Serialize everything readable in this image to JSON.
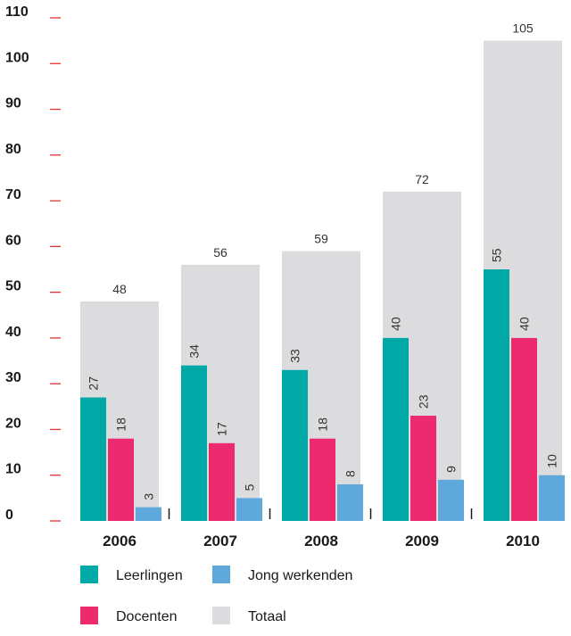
{
  "chart_data": {
    "type": "bar",
    "categories": [
      "2006",
      "2007",
      "2008",
      "2009",
      "2010"
    ],
    "series": [
      {
        "name": "Leerlingen",
        "values": [
          27,
          34,
          33,
          40,
          55
        ],
        "color": "#00a9a5"
      },
      {
        "name": "Docenten",
        "values": [
          18,
          17,
          18,
          23,
          40
        ],
        "color": "#ec2a6d"
      },
      {
        "name": "Jong werkenden",
        "values": [
          3,
          5,
          8,
          9,
          10
        ],
        "color": "#5fa8dc"
      },
      {
        "name": "Totaal",
        "values": [
          48,
          56,
          59,
          72,
          105
        ],
        "color": "#dcdcdf"
      }
    ],
    "yticks": [
      0,
      10,
      20,
      30,
      40,
      50,
      60,
      70,
      80,
      90,
      100,
      110
    ],
    "ylim": [
      0,
      110
    ],
    "title": "",
    "xlabel": "",
    "ylabel": "",
    "tick_mark_color": "#e8312f",
    "legend": "bottom-left"
  }
}
